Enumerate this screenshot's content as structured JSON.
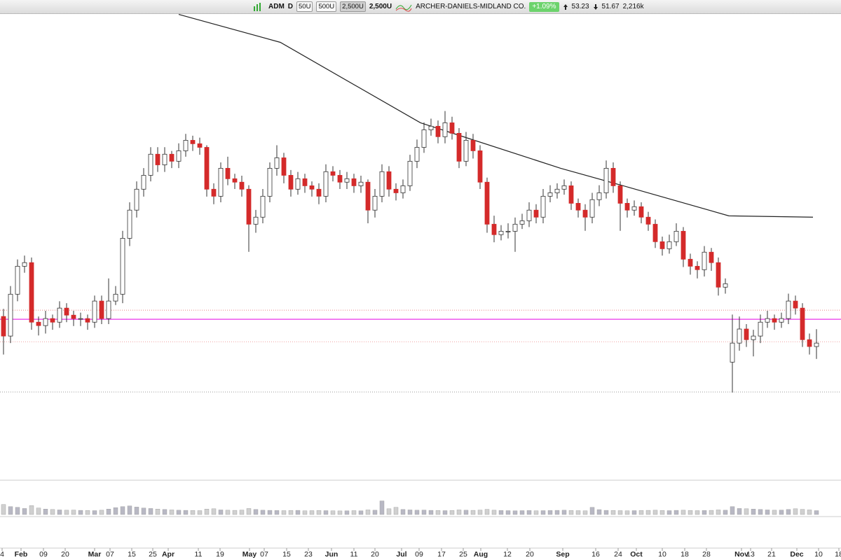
{
  "toolbar": {
    "symbol": "ADM",
    "period": "D",
    "ranges": [
      "50U",
      "500U",
      "2,500U"
    ],
    "range": "2,500U",
    "company": "ARCHER-DANIELS-MIDLAND CO.",
    "change": "+1.09%",
    "high": "53.23",
    "low": "51.67",
    "volume": "2,216k"
  },
  "chart_data": {
    "type": "candlestick",
    "xlim": [
      0,
      120
    ],
    "ylim": [
      46.25,
      69.8
    ],
    "up_color": "#ffffff",
    "down_color": "#d42a2a",
    "open": [
      53.9,
      52.87,
      55.07,
      56.54,
      56.73,
      53.6,
      53.42,
      53.79,
      53.6,
      54.34,
      53.97,
      53.79,
      53.79,
      53.6,
      54.71,
      53.79,
      54.71,
      55.07,
      58.01,
      59.49,
      60.59,
      61.32,
      62.43,
      61.87,
      62.43,
      62.06,
      62.61,
      63.16,
      62.98,
      62.79,
      60.59,
      60.22,
      61.69,
      61.14,
      60.96,
      60.59,
      58.75,
      59.12,
      60.22,
      61.69,
      62.24,
      61.32,
      60.59,
      61.14,
      60.77,
      60.59,
      60.22,
      61.51,
      61.32,
      60.96,
      61.14,
      60.77,
      60.96,
      59.49,
      60.22,
      61.51,
      60.59,
      60.4,
      60.77,
      62.06,
      62.79,
      63.71,
      63.9,
      63.35,
      64.08,
      63.53,
      62.06,
      63.16,
      62.61,
      60.96,
      58.75,
      58.2,
      58.38,
      58.38,
      58.75,
      58.93,
      59.49,
      59.12,
      60.22,
      60.4,
      60.59,
      60.77,
      59.85,
      59.49,
      59.12,
      60.04,
      60.4,
      61.69,
      60.77,
      59.85,
      59.49,
      59.67,
      59.12,
      58.75,
      57.83,
      57.46,
      57.83,
      58.38,
      56.91,
      56.54,
      56.36,
      57.28,
      56.73,
      55.44,
      51.5,
      52.5,
      53.24,
      52.68,
      52.87,
      53.6,
      53.79,
      53.6,
      53.79,
      54.71,
      54.34,
      52.68,
      52.32
    ],
    "high": [
      54.3,
      55.5,
      56.9,
      57.1,
      57.0,
      53.9,
      54.2,
      54.0,
      54.7,
      54.6,
      54.2,
      54.1,
      54.0,
      55.0,
      55.0,
      55.9,
      55.5,
      58.4,
      59.9,
      61.0,
      61.7,
      62.8,
      62.8,
      62.8,
      62.6,
      63.0,
      63.5,
      63.4,
      63.3,
      62.9,
      60.9,
      62.0,
      62.3,
      61.4,
      61.3,
      60.8,
      59.5,
      60.6,
      62.0,
      62.9,
      62.5,
      61.6,
      61.5,
      61.4,
      61.0,
      60.9,
      61.9,
      61.8,
      61.6,
      61.5,
      61.4,
      61.3,
      61.1,
      60.6,
      61.9,
      61.8,
      60.9,
      61.1,
      62.4,
      63.2,
      64.1,
      64.3,
      64.2,
      64.7,
      64.4,
      63.8,
      63.6,
      63.5,
      62.9,
      61.2,
      59.2,
      58.7,
      58.8,
      59.1,
      59.3,
      59.9,
      59.8,
      60.6,
      60.8,
      60.9,
      61.1,
      61.0,
      60.1,
      59.8,
      60.4,
      60.8,
      62.1,
      62.0,
      61.0,
      60.1,
      60.0,
      59.9,
      59.4,
      59.0,
      58.1,
      58.2,
      58.8,
      58.6,
      57.2,
      56.8,
      57.6,
      57.5,
      57.0,
      55.9,
      54.0,
      53.9,
      53.5,
      53.2,
      54.0,
      54.2,
      54.0,
      54.1,
      55.1,
      55.0,
      54.6,
      53.0,
      53.23
    ],
    "low": [
      51.9,
      52.5,
      54.7,
      56.2,
      53.2,
      52.9,
      53.0,
      53.2,
      53.3,
      53.6,
      53.4,
      53.4,
      53.2,
      53.3,
      53.5,
      53.5,
      54.5,
      54.6,
      57.6,
      59.1,
      60.2,
      61.0,
      61.5,
      61.5,
      61.7,
      61.7,
      62.3,
      62.6,
      62.4,
      60.2,
      59.8,
      59.9,
      60.8,
      60.6,
      60.2,
      57.3,
      58.3,
      58.8,
      59.9,
      61.3,
      60.9,
      60.2,
      60.3,
      60.4,
      60.2,
      59.8,
      59.9,
      61.0,
      60.6,
      60.6,
      60.4,
      60.4,
      58.8,
      59.1,
      59.9,
      60.2,
      60.0,
      60.1,
      60.5,
      61.7,
      62.5,
      63.4,
      63.0,
      63.0,
      63.2,
      61.7,
      61.8,
      62.2,
      60.6,
      58.3,
      57.8,
      57.9,
      58.0,
      57.3,
      58.5,
      58.6,
      58.8,
      58.8,
      59.9,
      60.1,
      60.3,
      59.5,
      59.1,
      58.4,
      58.8,
      59.7,
      60.1,
      60.4,
      58.4,
      59.1,
      59.2,
      58.8,
      58.4,
      57.5,
      57.1,
      57.2,
      57.6,
      56.5,
      56.1,
      55.9,
      56.0,
      56.3,
      55.0,
      55.1,
      49.9,
      52.1,
      52.3,
      51.8,
      52.5,
      53.3,
      53.2,
      53.3,
      53.5,
      54.0,
      52.3,
      51.9,
      51.67
    ],
    "close": [
      52.87,
      55.07,
      56.54,
      56.73,
      53.6,
      53.42,
      53.79,
      53.6,
      54.34,
      53.97,
      53.79,
      53.79,
      53.6,
      54.71,
      53.79,
      54.71,
      55.07,
      58.01,
      59.49,
      60.59,
      61.32,
      62.43,
      61.87,
      62.43,
      62.06,
      62.61,
      63.16,
      62.98,
      62.79,
      60.59,
      60.22,
      61.69,
      61.14,
      60.96,
      60.59,
      58.75,
      59.12,
      60.22,
      61.69,
      62.24,
      61.32,
      60.59,
      61.14,
      60.77,
      60.59,
      60.22,
      61.51,
      61.32,
      60.96,
      61.14,
      60.77,
      60.96,
      59.49,
      60.22,
      61.51,
      60.59,
      60.4,
      60.77,
      62.06,
      62.79,
      63.71,
      63.9,
      63.35,
      64.08,
      63.53,
      62.06,
      63.16,
      62.61,
      60.96,
      58.75,
      58.2,
      58.38,
      58.38,
      58.75,
      58.93,
      59.49,
      59.12,
      60.22,
      60.4,
      60.59,
      60.77,
      59.85,
      59.49,
      59.12,
      60.04,
      60.4,
      61.69,
      60.77,
      59.85,
      59.49,
      59.67,
      59.12,
      58.75,
      57.83,
      57.46,
      57.83,
      58.38,
      56.91,
      56.54,
      56.36,
      57.28,
      56.73,
      55.44,
      55.62,
      52.5,
      53.24,
      52.68,
      52.87,
      53.6,
      53.79,
      53.6,
      53.79,
      54.71,
      54.34,
      52.68,
      52.32,
      52.5
    ],
    "lines": [
      {
        "color": "#222222",
        "x": [
          25.5,
          40,
          60,
          80,
          90,
          104,
          116
        ],
        "values": [
          69.78,
          68.31,
          64.08,
          61.69,
          60.66,
          59.19,
          59.12
        ]
      }
    ],
    "levels": [
      {
        "value": 53.75,
        "color": "#ee55ee",
        "style": "solid"
      },
      {
        "value": 54.23,
        "color": "#e88080",
        "style": "dotted"
      },
      {
        "value": 52.57,
        "color": "#f0a0a0",
        "style": "dotted"
      },
      {
        "value": 49.93,
        "color": "#999999",
        "style": "dotted"
      }
    ],
    "volume": {
      "color": "#b8b8c4",
      "ylim": [
        0,
        22000
      ],
      "values": [
        7000,
        5500,
        5000,
        4200,
        6200,
        4500,
        3800,
        3500,
        3200,
        3000,
        3100,
        2900,
        2800,
        2700,
        3000,
        3800,
        4800,
        5500,
        6000,
        5200,
        4500,
        4200,
        3800,
        3500,
        3200,
        3000,
        2900,
        2800,
        2700,
        3800,
        4000,
        3200,
        3000,
        2900,
        3100,
        4200,
        3500,
        3000,
        2900,
        2800,
        2700,
        2800,
        2900,
        2600,
        2700,
        2800,
        2700,
        2600,
        2500,
        2600,
        2700,
        2600,
        3200,
        3000,
        9500,
        4000,
        5000,
        3500,
        3200,
        3000,
        3100,
        2900,
        2800,
        2700,
        2800,
        3200,
        3000,
        2900,
        3100,
        3600,
        3000,
        2800,
        2700,
        2600,
        2700,
        2800,
        2600,
        2700,
        2800,
        2900,
        3000,
        2800,
        2700,
        2600,
        5000,
        3400,
        2900,
        2800,
        2700,
        2600,
        2700,
        2800,
        2900,
        3000,
        2800,
        2700,
        2900,
        3000,
        2800,
        2700,
        2800,
        2900,
        3200,
        3000,
        5500,
        4200,
        4000,
        3800,
        3500,
        3200,
        3000,
        3100,
        3500,
        4000,
        3600,
        3200,
        2700
      ]
    },
    "xticks": [
      {
        "value": 0.3,
        "label": "4"
      },
      {
        "value": 3,
        "label": "Feb"
      },
      {
        "value": 6.2,
        "label": "09"
      },
      {
        "value": 9.3,
        "label": "20"
      },
      {
        "value": 13.5,
        "label": "Mar"
      },
      {
        "value": 15.7,
        "label": "07"
      },
      {
        "value": 18.8,
        "label": "15"
      },
      {
        "value": 21.8,
        "label": "25"
      },
      {
        "value": 24,
        "label": "Apr"
      },
      {
        "value": 28.3,
        "label": "11"
      },
      {
        "value": 31.4,
        "label": "19"
      },
      {
        "value": 35.6,
        "label": "May"
      },
      {
        "value": 37.7,
        "label": "07"
      },
      {
        "value": 40.9,
        "label": "15"
      },
      {
        "value": 44,
        "label": "23"
      },
      {
        "value": 47.3,
        "label": "Jun"
      },
      {
        "value": 50.5,
        "label": "11"
      },
      {
        "value": 53.5,
        "label": "20"
      },
      {
        "value": 57.3,
        "label": "Jul"
      },
      {
        "value": 59.8,
        "label": "09"
      },
      {
        "value": 63,
        "label": "17"
      },
      {
        "value": 66.1,
        "label": "25"
      },
      {
        "value": 68.6,
        "label": "Aug"
      },
      {
        "value": 72.4,
        "label": "12"
      },
      {
        "value": 75.6,
        "label": "20"
      },
      {
        "value": 80.3,
        "label": "Sep"
      },
      {
        "value": 85,
        "label": "16"
      },
      {
        "value": 88.2,
        "label": "24"
      },
      {
        "value": 90.8,
        "label": "Oct"
      },
      {
        "value": 94.5,
        "label": "10"
      },
      {
        "value": 97.7,
        "label": "18"
      },
      {
        "value": 100.8,
        "label": "28"
      },
      {
        "value": 105.8,
        "label": "Nov"
      },
      {
        "value": 107.1,
        "label": "13"
      },
      {
        "value": 110.1,
        "label": "21"
      },
      {
        "value": 113.7,
        "label": "Dec"
      },
      {
        "value": 116.8,
        "label": "10"
      },
      {
        "value": 119.7,
        "label": "18"
      }
    ]
  }
}
